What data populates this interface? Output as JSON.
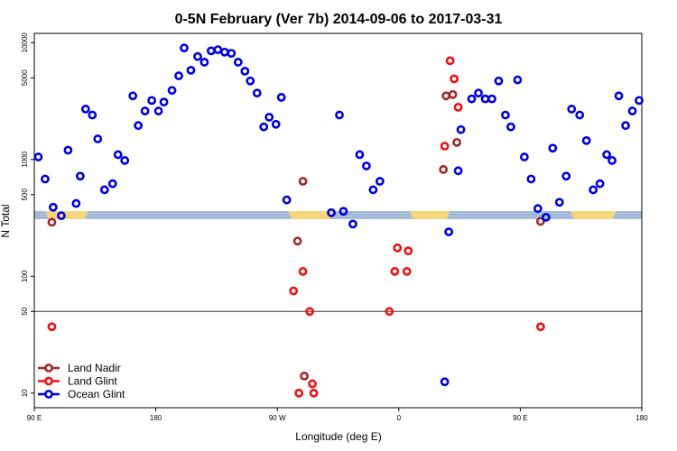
{
  "chart_data": {
    "type": "scatter",
    "title": "0-5N February (Ver 7b)   2014-09-06 to 2017-03-31",
    "xlabel": "Longitude (deg E)",
    "ylabel": "N Total",
    "y_scale": "log",
    "x_ticks": [
      {
        "value": 90,
        "label": "90 E"
      },
      {
        "value": 180,
        "label": "180"
      },
      {
        "value": 270,
        "label": "90 W"
      },
      {
        "value": 360,
        "label": "0"
      },
      {
        "value": 450,
        "label": "90 E"
      },
      {
        "value": 540,
        "label": "180"
      }
    ],
    "xlim": [
      90,
      540
    ],
    "y_ticks": [
      10,
      50,
      100,
      500,
      1000,
      5000,
      10000
    ],
    "ylim": [
      7.5,
      12000
    ],
    "reference_line": 50,
    "land_band": {
      "ocean_color": "#a5bcd9",
      "land_color": "#f5d77a",
      "land_segments": [
        [
          98,
          130
        ],
        [
          278,
          312
        ],
        [
          368,
          398
        ],
        [
          487,
          521
        ]
      ]
    },
    "colors": {
      "land_nadir": "#a0282a",
      "land_glint": "#ee1111",
      "ocean_glint": "#0000dd"
    },
    "legend": {
      "position": "bottom-left",
      "entries": [
        {
          "name": "Land Nadir",
          "key": "land_nadir"
        },
        {
          "name": "Land Glint",
          "key": "land_glint"
        },
        {
          "name": "Ocean Glint",
          "key": "ocean_glint"
        }
      ]
    },
    "series": [
      {
        "name": "Land Nadir",
        "key": "land_nadir",
        "points": [
          [
            103,
            290
          ],
          [
            289,
            650
          ],
          [
            285,
            200
          ],
          [
            290,
            14
          ],
          [
            393,
            820
          ],
          [
            395,
            3500
          ],
          [
            400,
            3600
          ],
          [
            403,
            1400
          ],
          [
            465,
            295
          ]
        ]
      },
      {
        "name": "Land Glint",
        "key": "land_glint",
        "points": [
          [
            103,
            37
          ],
          [
            282,
            75
          ],
          [
            286,
            10
          ],
          [
            289,
            110
          ],
          [
            294,
            50
          ],
          [
            296,
            12
          ],
          [
            297,
            10
          ],
          [
            353,
            50
          ],
          [
            357,
            110
          ],
          [
            359,
            175
          ],
          [
            366,
            110
          ],
          [
            367,
            165
          ],
          [
            394,
            1300
          ],
          [
            398,
            7000
          ],
          [
            401,
            4900
          ],
          [
            404,
            2800
          ],
          [
            465,
            37
          ]
        ]
      },
      {
        "name": "Ocean Glint",
        "key": "ocean_glint",
        "points": [
          [
            93,
            1050
          ],
          [
            98,
            680
          ],
          [
            104,
            390
          ],
          [
            110,
            330
          ],
          [
            115,
            1200
          ],
          [
            121,
            420
          ],
          [
            124,
            720
          ],
          [
            128,
            2700
          ],
          [
            133,
            2400
          ],
          [
            137,
            1500
          ],
          [
            142,
            550
          ],
          [
            148,
            620
          ],
          [
            152,
            1100
          ],
          [
            157,
            980
          ],
          [
            163,
            3500
          ],
          [
            167,
            1950
          ],
          [
            172,
            2600
          ],
          [
            177,
            3200
          ],
          [
            182,
            2600
          ],
          [
            186,
            3100
          ],
          [
            192,
            3900
          ],
          [
            197,
            5200
          ],
          [
            201,
            9000
          ],
          [
            206,
            5800
          ],
          [
            211,
            7600
          ],
          [
            216,
            6800
          ],
          [
            221,
            8500
          ],
          [
            226,
            8700
          ],
          [
            231,
            8300
          ],
          [
            236,
            8100
          ],
          [
            241,
            6800
          ],
          [
            246,
            5700
          ],
          [
            250,
            4700
          ],
          [
            255,
            3700
          ],
          [
            260,
            1900
          ],
          [
            264,
            2300
          ],
          [
            269,
            2000
          ],
          [
            273,
            3400
          ],
          [
            277,
            450
          ],
          [
            310,
            350
          ],
          [
            316,
            2400
          ],
          [
            319,
            360
          ],
          [
            326,
            280
          ],
          [
            331,
            1100
          ],
          [
            336,
            880
          ],
          [
            341,
            550
          ],
          [
            346,
            650
          ],
          [
            394,
            12.5
          ],
          [
            397,
            240
          ],
          [
            404,
            800
          ],
          [
            406,
            1800
          ],
          [
            414,
            3300
          ],
          [
            419,
            3700
          ],
          [
            424,
            3300
          ],
          [
            429,
            3300
          ],
          [
            434,
            4700
          ],
          [
            439,
            2400
          ],
          [
            443,
            1900
          ],
          [
            448,
            4800
          ],
          [
            453,
            1050
          ],
          [
            458,
            680
          ],
          [
            463,
            380
          ],
          [
            469,
            320
          ],
          [
            474,
            1250
          ],
          [
            479,
            430
          ],
          [
            484,
            720
          ],
          [
            488,
            2700
          ],
          [
            494,
            2400
          ],
          [
            499,
            1450
          ],
          [
            504,
            550
          ],
          [
            509,
            620
          ],
          [
            514,
            1100
          ],
          [
            518,
            980
          ],
          [
            523,
            3500
          ],
          [
            528,
            1950
          ],
          [
            533,
            2600
          ],
          [
            538,
            3200
          ]
        ]
      }
    ]
  }
}
